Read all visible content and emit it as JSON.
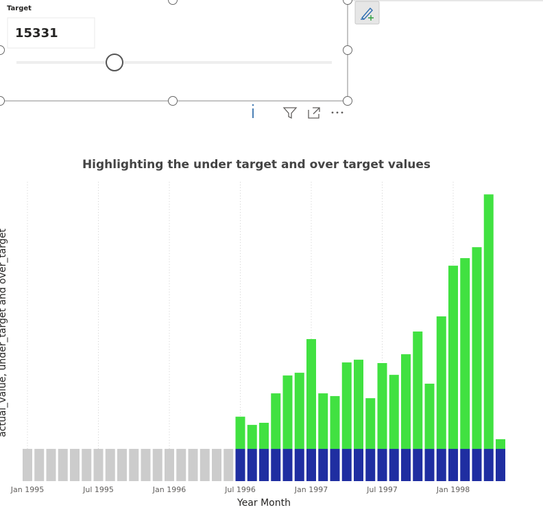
{
  "slicer": {
    "title": "Target",
    "value": "15331"
  },
  "chart_data": {
    "type": "bar",
    "stacked": true,
    "title": "Highlighting the under target and over target values",
    "x_label": "Year Month",
    "y_label": "actual_value, under_target and over_target",
    "categories": [
      "Jan 1995",
      null,
      null,
      null,
      null,
      null,
      "Jul 1995",
      null,
      null,
      null,
      null,
      null,
      "Jan 1996",
      null,
      null,
      null,
      null,
      null,
      "Jul 1996",
      null,
      null,
      null,
      null,
      null,
      "Jan 1997",
      null,
      null,
      null,
      null,
      null,
      "Jul 1997",
      null,
      null,
      null,
      null,
      null,
      "Jan 1998",
      null,
      null,
      null,
      null
    ],
    "series": [
      {
        "color": "#cccccc",
        "values": [
          15331,
          15331,
          15331,
          15331,
          15331,
          15331,
          15331,
          15331,
          15331,
          15331,
          15331,
          15331,
          15331,
          15331,
          15331,
          15331,
          15331,
          15331,
          null,
          null,
          null,
          null,
          null,
          null,
          null,
          null,
          null,
          null,
          null,
          null,
          null,
          null,
          null,
          null,
          null,
          null,
          null,
          null,
          null,
          null,
          null
        ]
      },
      {
        "color": "#1f2ea1",
        "values": [
          null,
          null,
          null,
          null,
          null,
          null,
          null,
          null,
          null,
          null,
          null,
          null,
          null,
          null,
          null,
          null,
          null,
          null,
          15331,
          15331,
          15331,
          15331,
          15331,
          15331,
          15331,
          15331,
          15331,
          15331,
          15331,
          15331,
          15331,
          15331,
          15331,
          15331,
          15331,
          15331,
          15331,
          15331,
          15331,
          15331,
          15331
        ]
      },
      {
        "color": "#41e141",
        "values": [
          null,
          null,
          null,
          null,
          null,
          null,
          null,
          null,
          null,
          null,
          null,
          null,
          null,
          null,
          null,
          null,
          null,
          null,
          15300,
          11400,
          12400,
          26400,
          34900,
          36200,
          52200,
          26400,
          25100,
          41100,
          42400,
          24100,
          40800,
          35200,
          45000,
          55800,
          31000,
          63000,
          87100,
          90700,
          95900,
          121000,
          4600
        ]
      }
    ],
    "ylim": [
      0,
      140000
    ],
    "grid": true
  }
}
